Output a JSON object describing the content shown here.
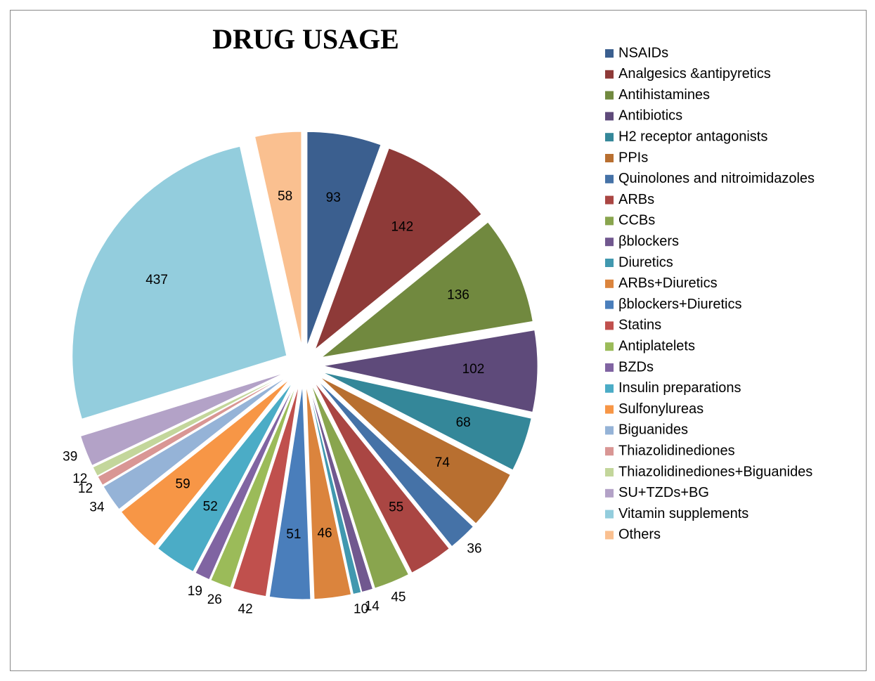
{
  "chart_data": {
    "type": "pie",
    "title": "DRUG USAGE",
    "categories": [
      "NSAIDs",
      "Analgesics &antipyretics",
      "Antihistamines",
      "Antibiotics",
      "H2 receptor antagonists",
      "PPIs",
      "Quinolones and nitroimidazoles",
      "ARBs",
      "CCBs",
      "βblockers",
      "Diuretics",
      "ARBs+Diuretics",
      "βblockers+Diuretics",
      "Statins",
      "Antiplatelets",
      "BZDs",
      "Insulin preparations",
      "Sulfonylureas",
      "Biguanides",
      "Thiazolidinediones",
      "Thiazolidinediones+Biguanides",
      "SU+TZDs+BG",
      "Vitamin supplements",
      "Others"
    ],
    "values": [
      93,
      142,
      136,
      102,
      68,
      74,
      36,
      55,
      45,
      14,
      10,
      46,
      51,
      42,
      26,
      19,
      52,
      59,
      34,
      12,
      12,
      39,
      437,
      58
    ],
    "colors": [
      "#3B5F8F",
      "#8E3A38",
      "#71893F",
      "#5E4A7A",
      "#348799",
      "#B86F30",
      "#4572A7",
      "#AA4643",
      "#89A54E",
      "#71588F",
      "#4198AF",
      "#DB843D",
      "#4A7EBB",
      "#C0504D",
      "#9BBB59",
      "#8064A2",
      "#4BACC6",
      "#F79646",
      "#95B3D7",
      "#D99694",
      "#C3D69B",
      "#B3A2C7",
      "#93CDDD",
      "#FAC090"
    ],
    "legend": "right"
  }
}
